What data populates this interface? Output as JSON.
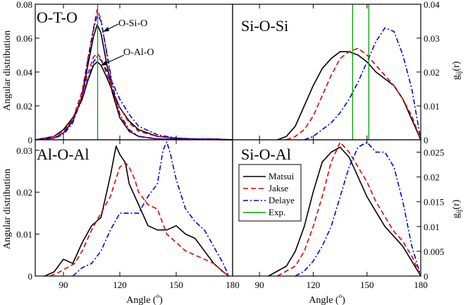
{
  "colors": {
    "Matsui": "#000000",
    "Jakse": "#e00000",
    "Delaye": "#0000e0",
    "Exp": "#00a000"
  },
  "chart_data": [
    {
      "panel": "top-left",
      "type": "line",
      "title": "O-T-O",
      "xlabel": "",
      "ylabel": "Angular distribution",
      "xlim": [
        75,
        180
      ],
      "ylim": [
        0,
        0.08
      ],
      "yticks": [
        "0",
        "0.02",
        "0.04",
        "0.06",
        "0.08"
      ],
      "annotations": [
        "O-Si-O",
        "O-Al-O"
      ],
      "vlines": [
        108.2
      ],
      "series": [
        {
          "name": "Matsui O-Si-O",
          "color_key": "Matsui",
          "x": [
            75,
            85,
            90,
            95,
            100,
            103,
            106,
            108,
            110,
            113,
            116,
            120,
            125,
            130,
            140,
            160,
            180
          ],
          "y": [
            0,
            0.001,
            0.004,
            0.011,
            0.026,
            0.044,
            0.061,
            0.068,
            0.063,
            0.045,
            0.028,
            0.013,
            0.005,
            0.002,
            0.0005,
            0.0002,
            0
          ]
        },
        {
          "name": "Jakse O-Si-O",
          "color_key": "Jakse",
          "x": [
            75,
            85,
            90,
            95,
            100,
            103,
            106,
            108,
            110,
            113,
            116,
            120,
            125,
            130,
            140,
            160,
            180
          ],
          "y": [
            0,
            0.001,
            0.004,
            0.012,
            0.029,
            0.048,
            0.066,
            0.077,
            0.071,
            0.051,
            0.031,
            0.014,
            0.005,
            0.002,
            0.0005,
            0.0002,
            0
          ]
        },
        {
          "name": "Delaye O-Si-O",
          "color_key": "Delaye",
          "x": [
            75,
            85,
            90,
            95,
            100,
            103,
            106,
            108,
            110,
            113,
            116,
            120,
            125,
            130,
            140,
            160,
            180
          ],
          "y": [
            0,
            0.001,
            0.003,
            0.01,
            0.027,
            0.047,
            0.065,
            0.074,
            0.07,
            0.052,
            0.033,
            0.015,
            0.006,
            0.002,
            0.0005,
            0.0002,
            0
          ]
        },
        {
          "name": "Matsui O-Al-O",
          "color_key": "Matsui",
          "x": [
            75,
            85,
            90,
            95,
            100,
            103,
            106,
            108,
            110,
            113,
            116,
            120,
            125,
            130,
            140,
            150,
            160,
            170,
            180
          ],
          "y": [
            0,
            0.002,
            0.006,
            0.013,
            0.024,
            0.035,
            0.044,
            0.046,
            0.044,
            0.037,
            0.029,
            0.019,
            0.011,
            0.006,
            0.002,
            0.001,
            0.0005,
            0.0005,
            0
          ]
        },
        {
          "name": "Jakse O-Al-O",
          "color_key": "Jakse",
          "x": [
            75,
            85,
            90,
            95,
            100,
            103,
            106,
            108,
            110,
            113,
            116,
            120,
            125,
            130,
            140,
            150,
            160,
            170,
            180
          ],
          "y": [
            0,
            0.002,
            0.005,
            0.012,
            0.026,
            0.039,
            0.049,
            0.051,
            0.048,
            0.039,
            0.03,
            0.019,
            0.01,
            0.005,
            0.002,
            0.001,
            0.0005,
            0.0005,
            0
          ]
        },
        {
          "name": "Delaye O-Al-O",
          "color_key": "Delaye",
          "x": [
            75,
            85,
            90,
            95,
            100,
            103,
            106,
            108,
            110,
            113,
            116,
            120,
            125,
            130,
            140,
            150,
            160,
            170,
            180
          ],
          "y": [
            0,
            0.001,
            0.004,
            0.011,
            0.024,
            0.036,
            0.046,
            0.049,
            0.047,
            0.041,
            0.034,
            0.024,
            0.015,
            0.008,
            0.003,
            0.001,
            0.0005,
            0.0005,
            0
          ]
        }
      ]
    },
    {
      "panel": "top-right",
      "type": "line",
      "title": "Si-O-Si",
      "xlabel": "",
      "ylabel": "g_ij(r)",
      "xlim": [
        75,
        180
      ],
      "ylim": [
        0,
        0.04
      ],
      "yticks": [
        "0",
        "0.01",
        "0.02",
        "0.03",
        "0.04"
      ],
      "vlines": [
        142,
        151
      ],
      "series": [
        {
          "name": "Matsui",
          "color_key": "Matsui",
          "x": [
            100,
            105,
            110,
            115,
            120,
            125,
            130,
            135,
            140,
            145,
            150,
            155,
            160,
            165,
            170,
            175,
            180
          ],
          "y": [
            0,
            0.001,
            0.004,
            0.01,
            0.016,
            0.021,
            0.024,
            0.026,
            0.026,
            0.025,
            0.023,
            0.02,
            0.018,
            0.016,
            0.012,
            0.006,
            0
          ]
        },
        {
          "name": "Jakse",
          "color_key": "Jakse",
          "x": [
            105,
            110,
            115,
            120,
            125,
            130,
            135,
            140,
            145,
            150,
            155,
            160,
            165,
            170,
            175,
            180
          ],
          "y": [
            0,
            0.001,
            0.003,
            0.007,
            0.013,
            0.019,
            0.024,
            0.026,
            0.027,
            0.025,
            0.022,
            0.019,
            0.016,
            0.012,
            0.007,
            0
          ]
        },
        {
          "name": "Delaye",
          "color_key": "Delaye",
          "x": [
            115,
            120,
            125,
            130,
            135,
            140,
            145,
            150,
            155,
            160,
            165,
            170,
            175,
            180
          ],
          "y": [
            0,
            0.001,
            0.003,
            0.005,
            0.008,
            0.012,
            0.017,
            0.023,
            0.029,
            0.033,
            0.032,
            0.025,
            0.015,
            0
          ]
        }
      ]
    },
    {
      "panel": "bottom-left",
      "type": "line",
      "title": "Al-O-Al",
      "xlabel": "Angle (°)",
      "ylabel": "Angular distribution",
      "xlim": [
        75,
        180
      ],
      "ylim": [
        0,
        0.0325
      ],
      "xticks": [
        "90",
        "120",
        "150",
        "180"
      ],
      "yticks": [
        "0",
        "0.01",
        "0.02",
        "0.03"
      ],
      "series": [
        {
          "name": "Matsui",
          "color_key": "Matsui",
          "x": [
            80,
            85,
            90,
            95,
            100,
            105,
            110,
            115,
            118,
            120,
            123,
            125,
            130,
            135,
            140,
            145,
            150,
            155,
            160,
            165,
            170,
            175,
            178
          ],
          "y": [
            0,
            0.001,
            0.004,
            0.003,
            0.008,
            0.012,
            0.014,
            0.024,
            0.031,
            0.029,
            0.027,
            0.022,
            0.017,
            0.012,
            0.011,
            0.011,
            0.012,
            0.01,
            0.009,
            0.006,
            0.003,
            0.001,
            0
          ]
        },
        {
          "name": "Jakse",
          "color_key": "Jakse",
          "x": [
            83,
            88,
            92,
            96,
            100,
            105,
            110,
            115,
            120,
            123,
            125,
            128,
            130,
            135,
            140,
            145,
            150,
            155,
            160,
            165,
            170,
            175,
            178
          ],
          "y": [
            0,
            0.001,
            0.002,
            0.003,
            0.006,
            0.011,
            0.015,
            0.019,
            0.026,
            0.027,
            0.026,
            0.023,
            0.02,
            0.017,
            0.016,
            0.01,
            0.008,
            0.006,
            0.005,
            0.004,
            0.003,
            0.001,
            0
          ]
        },
        {
          "name": "Delaye",
          "color_key": "Delaye",
          "x": [
            95,
            100,
            105,
            110,
            115,
            120,
            125,
            130,
            135,
            140,
            143,
            145,
            147,
            150,
            155,
            160,
            165,
            170,
            175,
            178
          ],
          "y": [
            0,
            0.002,
            0.003,
            0.006,
            0.011,
            0.015,
            0.015,
            0.015,
            0.019,
            0.022,
            0.03,
            0.032,
            0.029,
            0.023,
            0.016,
            0.013,
            0.011,
            0.007,
            0.003,
            0
          ]
        }
      ]
    },
    {
      "panel": "bottom-right",
      "type": "line",
      "title": "Si-O-Al",
      "xlabel": "Angle (°)",
      "ylabel": "g_ij(r)",
      "xlim": [
        75,
        180
      ],
      "ylim": [
        0,
        0.0275
      ],
      "xticks": [
        "90",
        "120",
        "150",
        "180"
      ],
      "yticks": [
        "0",
        "0.005",
        "0.01",
        "0.015",
        "0.02",
        "0.025"
      ],
      "series": [
        {
          "name": "Matsui",
          "color_key": "Matsui",
          "x": [
            95,
            100,
            105,
            110,
            115,
            120,
            125,
            130,
            135,
            140,
            145,
            150,
            155,
            160,
            165,
            170,
            175,
            180
          ],
          "y": [
            0,
            0.001,
            0.002,
            0.005,
            0.01,
            0.017,
            0.023,
            0.025,
            0.026,
            0.024,
            0.02,
            0.016,
            0.013,
            0.01,
            0.008,
            0.006,
            0.003,
            0
          ]
        },
        {
          "name": "Jakse",
          "color_key": "Jakse",
          "x": [
            100,
            105,
            110,
            115,
            120,
            125,
            130,
            135,
            140,
            145,
            150,
            155,
            160,
            165,
            170,
            175,
            180
          ],
          "y": [
            0,
            0.001,
            0.002,
            0.005,
            0.01,
            0.016,
            0.023,
            0.027,
            0.025,
            0.022,
            0.019,
            0.015,
            0.012,
            0.009,
            0.007,
            0.004,
            0
          ]
        },
        {
          "name": "Delaye",
          "color_key": "Delaye",
          "x": [
            110,
            115,
            120,
            125,
            130,
            135,
            140,
            145,
            150,
            155,
            160,
            165,
            170,
            175,
            180
          ],
          "y": [
            0,
            0.001,
            0.003,
            0.006,
            0.01,
            0.016,
            0.022,
            0.026,
            0.027,
            0.025,
            0.025,
            0.022,
            0.015,
            0.006,
            0
          ]
        }
      ]
    }
  ],
  "axis_label_x": "Angle (",
  "axis_label_x_unit": "o",
  "axis_label_x_close": ")",
  "axis_label_g": "g",
  "axis_label_g_sub": "ij",
  "axis_label_g_arg": "(r)",
  "legend": {
    "entries": [
      {
        "label": "Matsui",
        "color_key": "Matsui",
        "dash": "solid"
      },
      {
        "label": "Jakse",
        "color_key": "Jakse",
        "dash": "dashed"
      },
      {
        "label": "Delaye",
        "color_key": "Delaye",
        "dash": "dashdot"
      },
      {
        "label": "Exp.",
        "color_key": "Exp",
        "dash": "solid"
      }
    ]
  }
}
